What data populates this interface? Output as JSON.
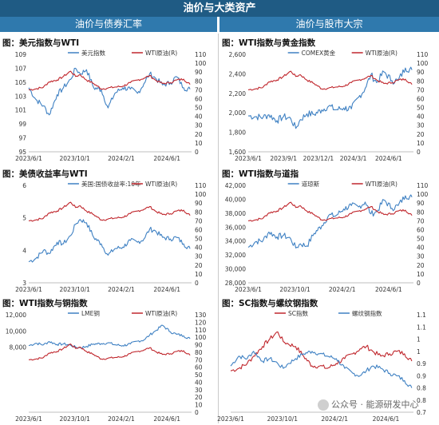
{
  "header": {
    "title": "油价与大类资产",
    "left_section": "油价与债券汇率",
    "right_section": "油价与股市大宗"
  },
  "watermark": "公众号 · 能源研发中心",
  "chart_data": [
    {
      "id": "usd_wti",
      "type": "line",
      "title": "图：美元指数与WTI",
      "x_ticks": [
        "2023/6/1",
        "2023/10/1",
        "2024/2/1",
        "2024/6/1"
      ],
      "x_range": [
        "2023-06-01",
        "2024-08-05"
      ],
      "left_axis": {
        "min": 95,
        "max": 109,
        "step": 2
      },
      "right_axis": {
        "min": 0,
        "max": 110,
        "step": 10
      },
      "series": [
        {
          "name": "美元指数",
          "axis": "left",
          "color": "#3f81c3",
          "x": [
            "2023-06-01",
            "2023-06-20",
            "2023-07-10",
            "2023-07-25",
            "2023-08-15",
            "2023-09-01",
            "2023-09-20",
            "2023-10-03",
            "2023-10-15",
            "2023-11-01",
            "2023-11-20",
            "2023-12-10",
            "2023-12-28",
            "2024-01-15",
            "2024-02-05",
            "2024-02-25",
            "2024-03-15",
            "2024-04-01",
            "2024-04-16",
            "2024-05-01",
            "2024-05-20",
            "2024-06-10",
            "2024-06-26",
            "2024-07-15",
            "2024-08-01"
          ],
          "y": [
            104.2,
            102.5,
            101.6,
            100.3,
            103.2,
            104.2,
            105.4,
            107.0,
            106.2,
            106.8,
            104.2,
            103.9,
            101.3,
            103.4,
            104.2,
            104.0,
            103.4,
            104.8,
            106.2,
            105.6,
            104.6,
            104.9,
            105.8,
            104.2,
            104.0
          ]
        },
        {
          "name": "WTI原油(R)",
          "axis": "right",
          "color": "#c0272d",
          "x": [
            "2023-06-01",
            "2023-06-20",
            "2023-07-10",
            "2023-07-25",
            "2023-08-15",
            "2023-09-01",
            "2023-09-20",
            "2023-10-03",
            "2023-10-15",
            "2023-11-01",
            "2023-11-20",
            "2023-12-10",
            "2023-12-28",
            "2024-01-15",
            "2024-02-05",
            "2024-02-25",
            "2024-03-15",
            "2024-04-01",
            "2024-04-16",
            "2024-05-01",
            "2024-05-20",
            "2024-06-10",
            "2024-06-26",
            "2024-07-15",
            "2024-08-01"
          ],
          "y": [
            70,
            71,
            73,
            79,
            81,
            85,
            91,
            85,
            87,
            81,
            77,
            71,
            72,
            73,
            74,
            78,
            81,
            83,
            86,
            81,
            77,
            78,
            81,
            82,
            76
          ]
        }
      ]
    },
    {
      "id": "wti_gold",
      "type": "line",
      "title": "图：WTI指数与黄金指数",
      "x_ticks": [
        "2023/6/1",
        "2023/9/1",
        "2023/12/1",
        "2024/3/1",
        "2024/6/1"
      ],
      "x_range": [
        "2023-06-01",
        "2024-08-05"
      ],
      "left_axis": {
        "min": 1600,
        "max": 2600,
        "step": 200
      },
      "right_axis": {
        "min": 0,
        "max": 110,
        "step": 10
      },
      "series": [
        {
          "name": "COMEX黄金",
          "axis": "left",
          "color": "#3f81c3",
          "x": [
            "2023-06-01",
            "2023-06-20",
            "2023-07-10",
            "2023-07-25",
            "2023-08-15",
            "2023-09-01",
            "2023-09-20",
            "2023-10-03",
            "2023-10-15",
            "2023-11-01",
            "2023-11-20",
            "2023-12-10",
            "2023-12-28",
            "2024-01-15",
            "2024-02-05",
            "2024-02-25",
            "2024-03-15",
            "2024-04-01",
            "2024-04-16",
            "2024-05-01",
            "2024-05-20",
            "2024-06-10",
            "2024-06-26",
            "2024-07-15",
            "2024-08-01"
          ],
          "y": [
            1970,
            1960,
            1955,
            1980,
            1920,
            1960,
            1940,
            1840,
            1930,
            1990,
            1985,
            2030,
            2070,
            2030,
            2050,
            2040,
            2160,
            2250,
            2390,
            2310,
            2420,
            2330,
            2330,
            2460,
            2440
          ]
        },
        {
          "name": "WTI原油(R)",
          "axis": "right",
          "color": "#c0272d",
          "x": [
            "2023-06-01",
            "2023-06-20",
            "2023-07-10",
            "2023-07-25",
            "2023-08-15",
            "2023-09-01",
            "2023-09-20",
            "2023-10-03",
            "2023-10-15",
            "2023-11-01",
            "2023-11-20",
            "2023-12-10",
            "2023-12-28",
            "2024-01-15",
            "2024-02-05",
            "2024-02-25",
            "2024-03-15",
            "2024-04-01",
            "2024-04-16",
            "2024-05-01",
            "2024-05-20",
            "2024-06-10",
            "2024-06-26",
            "2024-07-15",
            "2024-08-01"
          ],
          "y": [
            70,
            71,
            73,
            79,
            81,
            85,
            91,
            85,
            87,
            81,
            77,
            71,
            72,
            73,
            74,
            78,
            81,
            83,
            86,
            81,
            77,
            78,
            81,
            82,
            76
          ]
        }
      ]
    },
    {
      "id": "ust10y_wti",
      "type": "line",
      "title": "图：美债收益率与WTI",
      "x_ticks": [
        "2023/6/1",
        "2023/10/1",
        "2024/2/1",
        "2024/6/1"
      ],
      "x_range": [
        "2023-06-01",
        "2024-08-05"
      ],
      "left_axis": {
        "min": 3,
        "max": 6,
        "step": 1
      },
      "right_axis": {
        "min": 0,
        "max": 110,
        "step": 10
      },
      "series": [
        {
          "name": "美国:国债收益率:10年",
          "axis": "left",
          "color": "#3f81c3",
          "x": [
            "2023-06-01",
            "2023-06-20",
            "2023-07-10",
            "2023-07-25",
            "2023-08-15",
            "2023-09-01",
            "2023-09-20",
            "2023-10-03",
            "2023-10-15",
            "2023-11-01",
            "2023-11-20",
            "2023-12-10",
            "2023-12-28",
            "2024-01-15",
            "2024-02-05",
            "2024-02-25",
            "2024-03-15",
            "2024-04-01",
            "2024-04-16",
            "2024-05-01",
            "2024-05-20",
            "2024-06-10",
            "2024-06-26",
            "2024-07-15",
            "2024-08-01"
          ],
          "y": [
            3.65,
            3.75,
            4.0,
            3.9,
            4.25,
            4.2,
            4.45,
            4.8,
            4.95,
            4.85,
            4.4,
            4.2,
            3.85,
            4.05,
            4.1,
            4.3,
            4.25,
            4.35,
            4.65,
            4.6,
            4.4,
            4.35,
            4.4,
            4.2,
            4.05
          ]
        },
        {
          "name": "WTI原油(R)",
          "axis": "right",
          "color": "#c0272d",
          "x": [
            "2023-06-01",
            "2023-06-20",
            "2023-07-10",
            "2023-07-25",
            "2023-08-15",
            "2023-09-01",
            "2023-09-20",
            "2023-10-03",
            "2023-10-15",
            "2023-11-01",
            "2023-11-20",
            "2023-12-10",
            "2023-12-28",
            "2024-01-15",
            "2024-02-05",
            "2024-02-25",
            "2024-03-15",
            "2024-04-01",
            "2024-04-16",
            "2024-05-01",
            "2024-05-20",
            "2024-06-10",
            "2024-06-26",
            "2024-07-15",
            "2024-08-01"
          ],
          "y": [
            70,
            71,
            73,
            79,
            81,
            85,
            91,
            85,
            87,
            81,
            77,
            71,
            72,
            73,
            74,
            78,
            81,
            83,
            86,
            81,
            77,
            78,
            81,
            82,
            76
          ]
        }
      ]
    },
    {
      "id": "wti_dow",
      "type": "line",
      "title": "图：WTI指数与道指",
      "x_ticks": [
        "2023/6/1",
        "2023/10/1",
        "2024/2/1",
        "2024/6/1"
      ],
      "x_range": [
        "2023-06-01",
        "2024-08-05"
      ],
      "left_axis": {
        "min": 28000,
        "max": 42000,
        "step": 2000
      },
      "right_axis": {
        "min": 0,
        "max": 110,
        "step": 10
      },
      "series": [
        {
          "name": "道琼斯",
          "axis": "left",
          "color": "#3f81c3",
          "x": [
            "2023-06-01",
            "2023-06-20",
            "2023-07-10",
            "2023-07-25",
            "2023-08-15",
            "2023-09-01",
            "2023-09-20",
            "2023-10-03",
            "2023-10-15",
            "2023-11-01",
            "2023-11-20",
            "2023-12-10",
            "2023-12-28",
            "2024-01-15",
            "2024-02-05",
            "2024-02-25",
            "2024-03-15",
            "2024-04-01",
            "2024-04-16",
            "2024-05-01",
            "2024-05-20",
            "2024-06-10",
            "2024-06-26",
            "2024-07-15",
            "2024-08-01"
          ],
          "y": [
            33100,
            33900,
            34100,
            35300,
            34600,
            34800,
            34300,
            33000,
            33600,
            33300,
            35100,
            36200,
            37700,
            37600,
            38600,
            39100,
            38900,
            39600,
            37900,
            38200,
            39900,
            38700,
            39100,
            40500,
            40300
          ]
        },
        {
          "name": "WTI原油(R)",
          "axis": "right",
          "color": "#c0272d",
          "x": [
            "2023-06-01",
            "2023-06-20",
            "2023-07-10",
            "2023-07-25",
            "2023-08-15",
            "2023-09-01",
            "2023-09-20",
            "2023-10-03",
            "2023-10-15",
            "2023-11-01",
            "2023-11-20",
            "2023-12-10",
            "2023-12-28",
            "2024-01-15",
            "2024-02-05",
            "2024-02-25",
            "2024-03-15",
            "2024-04-01",
            "2024-04-16",
            "2024-05-01",
            "2024-05-20",
            "2024-06-10",
            "2024-06-26",
            "2024-07-15",
            "2024-08-01"
          ],
          "y": [
            70,
            71,
            73,
            79,
            81,
            85,
            91,
            85,
            87,
            81,
            77,
            71,
            72,
            73,
            74,
            78,
            81,
            83,
            86,
            81,
            77,
            78,
            81,
            82,
            76
          ]
        }
      ]
    },
    {
      "id": "wti_copper",
      "type": "line",
      "title": "图：WTI指数与铜指数",
      "x_ticks": [
        "2023/6/1",
        "2023/10/1",
        "2024/2/1",
        "2024/6/1"
      ],
      "x_range": [
        "2023-06-01",
        "2024-08-05"
      ],
      "left_axis": {
        "min": 0,
        "max": 12000,
        "step": 2000
      },
      "left_tick_min": 8000,
      "right_axis": {
        "min": 0,
        "max": 130,
        "step": 10
      },
      "series": [
        {
          "name": "LME铜",
          "axis": "left",
          "color": "#3f81c3",
          "x": [
            "2023-06-01",
            "2023-06-20",
            "2023-07-10",
            "2023-07-25",
            "2023-08-15",
            "2023-09-01",
            "2023-09-20",
            "2023-10-03",
            "2023-10-15",
            "2023-11-01",
            "2023-11-20",
            "2023-12-10",
            "2023-12-28",
            "2024-01-15",
            "2024-02-05",
            "2024-02-25",
            "2024-03-15",
            "2024-04-01",
            "2024-04-16",
            "2024-05-01",
            "2024-05-20",
            "2024-06-10",
            "2024-06-26",
            "2024-07-15",
            "2024-08-01"
          ],
          "y": [
            8200,
            8500,
            8300,
            8700,
            8350,
            8400,
            8250,
            8000,
            7950,
            8100,
            8400,
            8450,
            8550,
            8300,
            8200,
            8400,
            8750,
            8900,
            9500,
            10000,
            10700,
            9900,
            9600,
            9400,
            9050
          ]
        },
        {
          "name": "WTI原油(R)",
          "axis": "right",
          "color": "#c0272d",
          "x": [
            "2023-06-01",
            "2023-06-20",
            "2023-07-10",
            "2023-07-25",
            "2023-08-15",
            "2023-09-01",
            "2023-09-20",
            "2023-10-03",
            "2023-10-15",
            "2023-11-01",
            "2023-11-20",
            "2023-12-10",
            "2023-12-28",
            "2024-01-15",
            "2024-02-05",
            "2024-02-25",
            "2024-03-15",
            "2024-04-01",
            "2024-04-16",
            "2024-05-01",
            "2024-05-20",
            "2024-06-10",
            "2024-06-26",
            "2024-07-15",
            "2024-08-01"
          ],
          "y": [
            70,
            71,
            73,
            79,
            81,
            85,
            91,
            85,
            87,
            81,
            77,
            71,
            72,
            73,
            74,
            78,
            81,
            83,
            86,
            81,
            77,
            78,
            81,
            82,
            76
          ]
        }
      ]
    },
    {
      "id": "sc_rebar",
      "type": "line",
      "title": "图：SC指数与螺纹钢指数",
      "x_ticks": [
        "2023/6/1",
        "2023/10/1",
        "2024/2/1",
        "2024/6/1"
      ],
      "x_range": [
        "2023-06-01",
        "2024-08-05"
      ],
      "left_axis": null,
      "right_axis": {
        "min": 0.7,
        "max": 1.1,
        "step": 0.05,
        "decimals": 1
      },
      "right_tick_labels": [
        "0.7",
        "0.8",
        "0.8",
        "0.9",
        "0.9",
        "1",
        "1",
        "1.1",
        "1.1"
      ],
      "series": [
        {
          "name": "SC指数",
          "axis": "right",
          "color": "#c0272d",
          "x": [
            "2023-06-01",
            "2023-06-20",
            "2023-07-10",
            "2023-07-25",
            "2023-08-15",
            "2023-09-01",
            "2023-09-20",
            "2023-10-03",
            "2023-10-15",
            "2023-11-01",
            "2023-11-20",
            "2023-12-10",
            "2023-12-28",
            "2024-01-15",
            "2024-02-05",
            "2024-02-25",
            "2024-03-15",
            "2024-04-01",
            "2024-04-16",
            "2024-05-01",
            "2024-05-20",
            "2024-06-10",
            "2024-06-26",
            "2024-07-15",
            "2024-08-01"
          ],
          "y": [
            0.87,
            0.88,
            0.9,
            0.93,
            0.97,
            1.0,
            1.03,
            0.99,
            0.98,
            0.97,
            0.93,
            0.89,
            0.89,
            0.88,
            0.9,
            0.92,
            0.94,
            0.96,
            0.97,
            0.95,
            0.93,
            0.94,
            0.95,
            0.94,
            0.91
          ]
        },
        {
          "name": "螺纹钢指数",
          "axis": "right",
          "color": "#3f81c3",
          "x": [
            "2023-06-01",
            "2023-06-20",
            "2023-07-10",
            "2023-07-25",
            "2023-08-15",
            "2023-09-01",
            "2023-09-20",
            "2023-10-03",
            "2023-10-15",
            "2023-11-01",
            "2023-11-20",
            "2023-12-10",
            "2023-12-28",
            "2024-01-15",
            "2024-02-05",
            "2024-02-25",
            "2024-03-15",
            "2024-04-01",
            "2024-04-16",
            "2024-05-01",
            "2024-05-20",
            "2024-06-10",
            "2024-06-26",
            "2024-07-15",
            "2024-08-01"
          ],
          "y": [
            0.89,
            0.93,
            0.92,
            0.95,
            0.91,
            0.92,
            0.9,
            0.88,
            0.9,
            0.92,
            0.94,
            0.95,
            0.94,
            0.93,
            0.92,
            0.88,
            0.86,
            0.85,
            0.87,
            0.89,
            0.88,
            0.86,
            0.85,
            0.83,
            0.8
          ]
        }
      ]
    }
  ]
}
